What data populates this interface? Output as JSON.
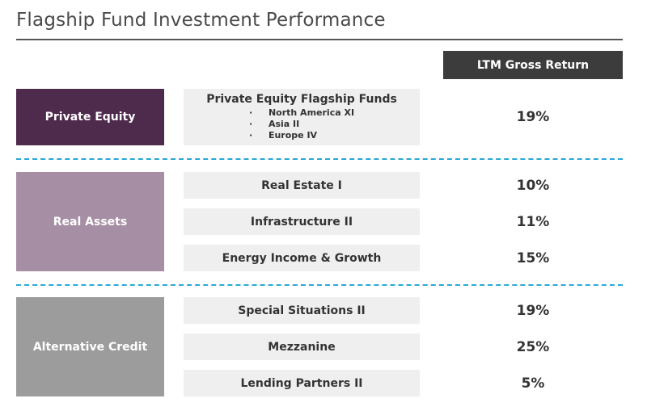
{
  "title": "Flagship Fund Investment Performance",
  "column_header": "LTM Gross Return",
  "colors": {
    "private_equity": "#4e2a4d",
    "real_assets": "#a68fa4",
    "alternative_credit": "#9c9c9c",
    "header_bg": "#3c3c3c",
    "separator": "#29a8d6"
  },
  "groups": [
    {
      "label": "Private Equity",
      "funds": [
        {
          "name": "Private Equity Flagship Funds",
          "sub": [
            "North America XI",
            "Asia II",
            "Europe IV"
          ],
          "return": "19%"
        }
      ]
    },
    {
      "label": "Real Assets",
      "funds": [
        {
          "name": "Real Estate I",
          "return": "10%"
        },
        {
          "name": "Infrastructure II",
          "return": "11%"
        },
        {
          "name": "Energy Income & Growth",
          "return": "15%"
        }
      ]
    },
    {
      "label": "Alternative Credit",
      "funds": [
        {
          "name": "Special Situations II",
          "return": "19%"
        },
        {
          "name": "Mezzanine",
          "return": "25%"
        },
        {
          "name": "Lending Partners II",
          "return": "5%"
        }
      ]
    }
  ]
}
